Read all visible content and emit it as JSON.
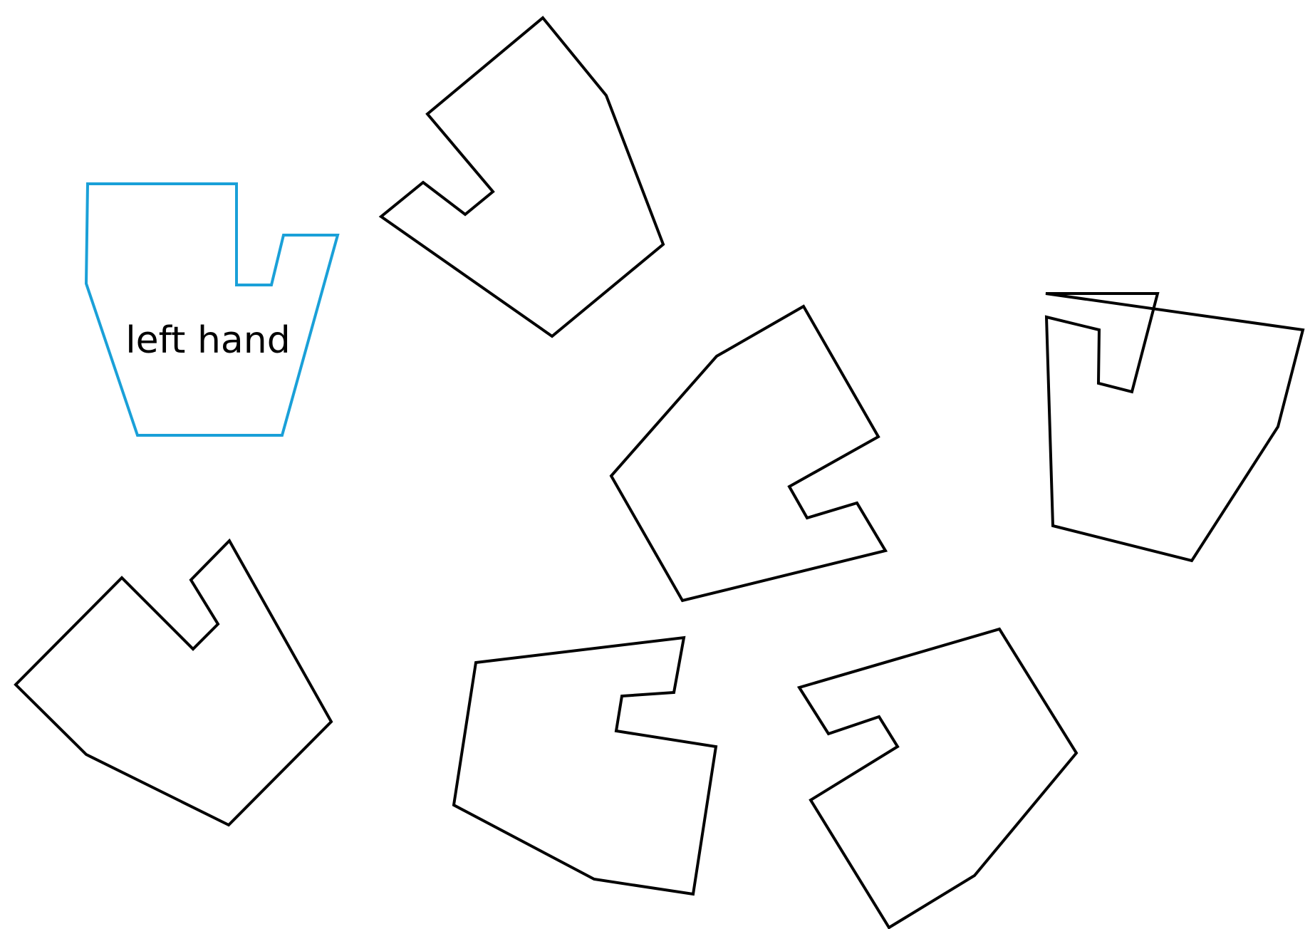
{
  "diagram": {
    "reference_label": "left hand",
    "colors": {
      "reference_outline": "#1aa0d8",
      "shape_outline": "#000000",
      "background": "#ffffff"
    },
    "shape_count": 7
  }
}
